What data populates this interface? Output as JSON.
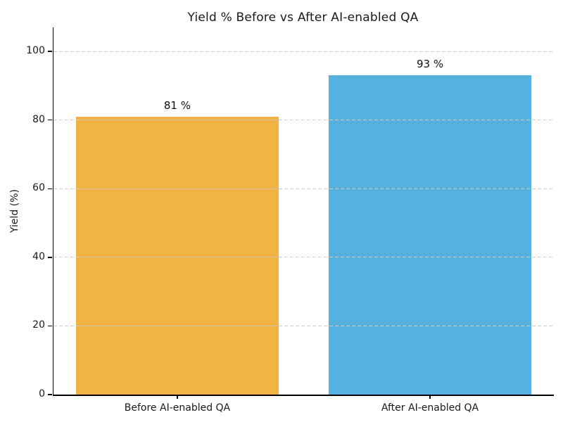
{
  "chart_data": {
    "type": "bar",
    "title": "Yield % Before vs After AI-enabled QA",
    "xlabel": "",
    "ylabel": "Yield (%)",
    "categories": [
      "Before AI-enabled QA",
      "After AI-enabled QA"
    ],
    "values": [
      81,
      93
    ],
    "value_labels": [
      "81 %",
      "93 %"
    ],
    "bar_colors": [
      "#F1B344",
      "#56B1E0"
    ],
    "yticks": [
      0,
      20,
      40,
      60,
      80,
      100
    ],
    "ylim": [
      0,
      107
    ],
    "grid": "horizontal-dashed-over-bars",
    "gridline_color": "#cccccc",
    "legend": "none",
    "background_color": "#ffffff",
    "spines": [
      "left",
      "bottom"
    ]
  }
}
